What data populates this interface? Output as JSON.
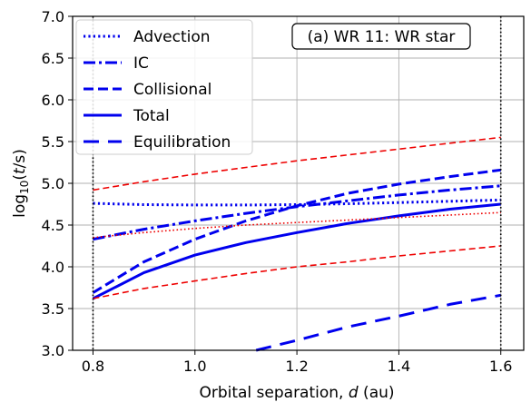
{
  "chart_data": {
    "type": "line",
    "annotation": "(a) WR 11: WR star",
    "xlabel_prefix": "Orbital separation, ",
    "xlabel_var": "d",
    "xlabel_suffix": " (au)",
    "ylabel_prefix": "log",
    "ylabel_sub": "10",
    "ylabel_mid": "(",
    "ylabel_var": "t",
    "ylabel_suffix": "/s)",
    "xlim": [
      0.76,
      1.645
    ],
    "ylim": [
      3.0,
      7.0
    ],
    "xticks": [
      0.8,
      1.0,
      1.2,
      1.4,
      1.6
    ],
    "xtick_labels": [
      "0.8",
      "1.0",
      "1.2",
      "1.4",
      "1.6"
    ],
    "yticks": [
      3.0,
      3.5,
      4.0,
      4.5,
      5.0,
      5.5,
      6.0,
      6.5,
      7.0
    ],
    "ytick_labels": [
      "3.0",
      "3.5",
      "4.0",
      "4.5",
      "5.0",
      "5.5",
      "6.0",
      "6.5",
      "7.0"
    ],
    "grid": true,
    "legend_position": "top-left",
    "colors": {
      "blue": "#0000ee",
      "red": "#ee0000"
    },
    "vlines": [
      0.8,
      1.6
    ],
    "legend": [
      {
        "label": "Advection",
        "style": "dotted"
      },
      {
        "label": "IC",
        "style": "dashdot"
      },
      {
        "label": "Collisional",
        "style": "dashed"
      },
      {
        "label": "Total",
        "style": "solid"
      },
      {
        "label": "Equilibration",
        "style": "longdash"
      }
    ],
    "series": [
      {
        "name": "Advection",
        "color": "blue",
        "style": "dotted",
        "width": 3,
        "x": [
          0.8,
          0.9,
          1.0,
          1.1,
          1.2,
          1.3,
          1.4,
          1.5,
          1.6
        ],
        "y": [
          4.76,
          4.745,
          4.74,
          4.74,
          4.745,
          4.755,
          4.77,
          4.785,
          4.8
        ]
      },
      {
        "name": "IC",
        "color": "blue",
        "style": "dashdot",
        "width": 3,
        "x": [
          0.8,
          0.9,
          1.0,
          1.1,
          1.2,
          1.3,
          1.4,
          1.5,
          1.6
        ],
        "y": [
          4.33,
          4.45,
          4.55,
          4.64,
          4.72,
          4.79,
          4.86,
          4.92,
          4.97
        ]
      },
      {
        "name": "Collisional",
        "color": "blue",
        "style": "dashed",
        "width": 3,
        "x": [
          0.8,
          0.9,
          1.0,
          1.1,
          1.2,
          1.3,
          1.4,
          1.5,
          1.6
        ],
        "y": [
          3.69,
          4.06,
          4.33,
          4.55,
          4.73,
          4.88,
          4.99,
          5.08,
          5.16
        ]
      },
      {
        "name": "Total",
        "color": "blue",
        "style": "solid",
        "width": 3,
        "x": [
          0.8,
          0.9,
          1.0,
          1.1,
          1.2,
          1.3,
          1.4,
          1.5,
          1.6
        ],
        "y": [
          3.62,
          3.93,
          4.14,
          4.29,
          4.41,
          4.52,
          4.61,
          4.69,
          4.75
        ]
      },
      {
        "name": "Equilibration",
        "color": "blue",
        "style": "longdash",
        "width": 3,
        "x": [
          1.12,
          1.2,
          1.3,
          1.4,
          1.5,
          1.6
        ],
        "y": [
          3.0,
          3.12,
          3.28,
          3.41,
          3.55,
          3.66
        ]
      },
      {
        "color": "red",
        "style": "dashed",
        "width": 1.6,
        "x": [
          0.8,
          0.9,
          1.0,
          1.1,
          1.2,
          1.3,
          1.4,
          1.5,
          1.6
        ],
        "y": [
          4.92,
          5.02,
          5.11,
          5.19,
          5.27,
          5.34,
          5.41,
          5.48,
          5.55
        ]
      },
      {
        "color": "red",
        "style": "dotted",
        "width": 1.6,
        "x": [
          0.8,
          0.9,
          1.0,
          1.1,
          1.2,
          1.3,
          1.4,
          1.5,
          1.6
        ],
        "y": [
          4.35,
          4.41,
          4.46,
          4.5,
          4.53,
          4.56,
          4.59,
          4.62,
          4.65
        ]
      },
      {
        "color": "red",
        "style": "dashed",
        "width": 1.6,
        "x": [
          0.8,
          0.9,
          1.0,
          1.1,
          1.2,
          1.3,
          1.4,
          1.5,
          1.6
        ],
        "y": [
          3.62,
          3.74,
          3.83,
          3.92,
          4.0,
          4.06,
          4.13,
          4.19,
          4.25
        ]
      }
    ]
  }
}
